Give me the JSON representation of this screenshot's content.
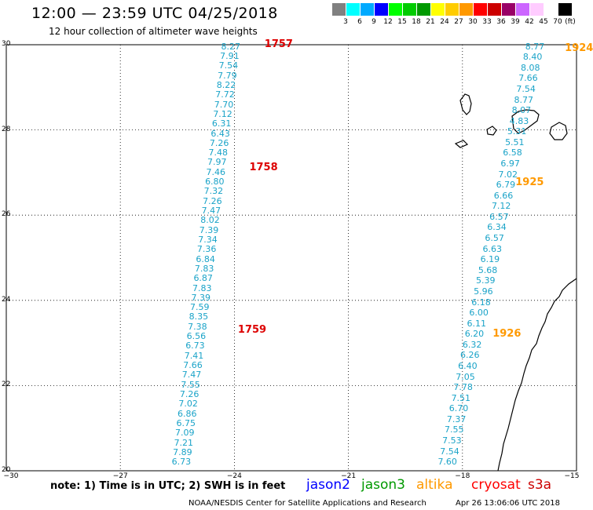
{
  "header": {
    "title": "12:00 — 23:59 UTC 04/25/2018",
    "subtitle": "12 hour collection of altimeter wave heights"
  },
  "color_scale": {
    "labels": [
      "3",
      "6",
      "9",
      "12",
      "15",
      "18",
      "21",
      "24",
      "27",
      "30",
      "33",
      "36",
      "39",
      "42",
      "45",
      "70"
    ],
    "unit": "(ft)",
    "colors": [
      "#808080",
      "#00ffff",
      "#00aaff",
      "#0000ff",
      "#00ff00",
      "#00cc00",
      "#009900",
      "#ffff00",
      "#ffcc00",
      "#ff9900",
      "#ff0000",
      "#cc0000",
      "#990066",
      "#cc66ff",
      "#ffccff",
      "#ffffff",
      "#000000"
    ]
  },
  "axes": {
    "lat_labels": [
      "30",
      "28",
      "26",
      "24",
      "22",
      "20"
    ],
    "lon_labels": [
      "−30",
      "−27",
      "−24",
      "−21",
      "−18",
      "−15"
    ]
  },
  "tracks": [
    {
      "lon_start": -24.1,
      "lon_end": -25.4,
      "values": [
        "8.27",
        "7.91",
        "7.54",
        "7.79",
        "8.22",
        "7.72",
        "7.70",
        "7.12",
        "6.31",
        "6.43",
        "7.26",
        "7.48",
        "7.97",
        "7.46",
        "6.80",
        "7.32",
        "7.26",
        "7.47",
        "8.02",
        "7.39",
        "7.34",
        "7.36",
        "6.84",
        "7.83",
        "6.87",
        "7.83",
        "7.39",
        "7.59",
        "8.35",
        "7.38",
        "6.56",
        "6.73",
        "7.41",
        "7.66",
        "7.47",
        "7.55",
        "7.26",
        "7.02",
        "6.86",
        "6.75",
        "7.09",
        "7.21",
        "7.89",
        "6.73"
      ],
      "time_labels": [
        {
          "text": "1757",
          "lat": 30.0,
          "lon": -23.0
        },
        {
          "text": "1758",
          "lat": 27.1,
          "lon": -23.4
        },
        {
          "text": "1759",
          "lat": 23.3,
          "lon": -23.7
        }
      ]
    },
    {
      "lon_start": -16.1,
      "lon_end": -18.4,
      "values": [
        "8.77",
        "8.40",
        "8.08",
        "7.66",
        "7.54",
        "8.77",
        "8.07",
        "4.83",
        "5.31",
        "5.51",
        "6.58",
        "6.97",
        "7.02",
        "6.79",
        "6.66",
        "7.12",
        "6.57",
        "6.34",
        "6.57",
        "6.63",
        "6.19",
        "5.68",
        "5.39",
        "5.96",
        "6.18",
        "6.00",
        "6.11",
        "6.20",
        "6.32",
        "6.26",
        "6.40",
        "7.05",
        "7.78",
        "7.51",
        "6.70",
        "7.37",
        "7.55",
        "7.53",
        "7.54",
        "7.60"
      ],
      "time_labels": [
        {
          "text": "1924",
          "lat": 29.9,
          "lon": -15.1
        },
        {
          "text": "1925",
          "lat": 26.75,
          "lon": -16.4
        },
        {
          "text": "1926",
          "lat": 23.2,
          "lon": -17.0
        }
      ]
    }
  ],
  "legend": {
    "note": "note: 1) Time is in UTC; 2) SWH is in feet",
    "satellites": [
      {
        "name": "jason2",
        "color": "#0000ff"
      },
      {
        "name": "jason3",
        "color": "#009900"
      },
      {
        "name": "altika",
        "color": "#ff9900"
      },
      {
        "name": "cryosat",
        "color": "#ff0000"
      },
      {
        "name": "s3a",
        "color": "#cc0000"
      }
    ]
  },
  "footer": {
    "credit": "NOAA/NESDIS Center for Satellite Applications and Research",
    "timestamp": "Apr 26 13:06:06 UTC 2018"
  },
  "colors": {
    "wave_value": "#1aa3c8",
    "time_red": "#dd0000",
    "time_orange": "#ff9900"
  }
}
